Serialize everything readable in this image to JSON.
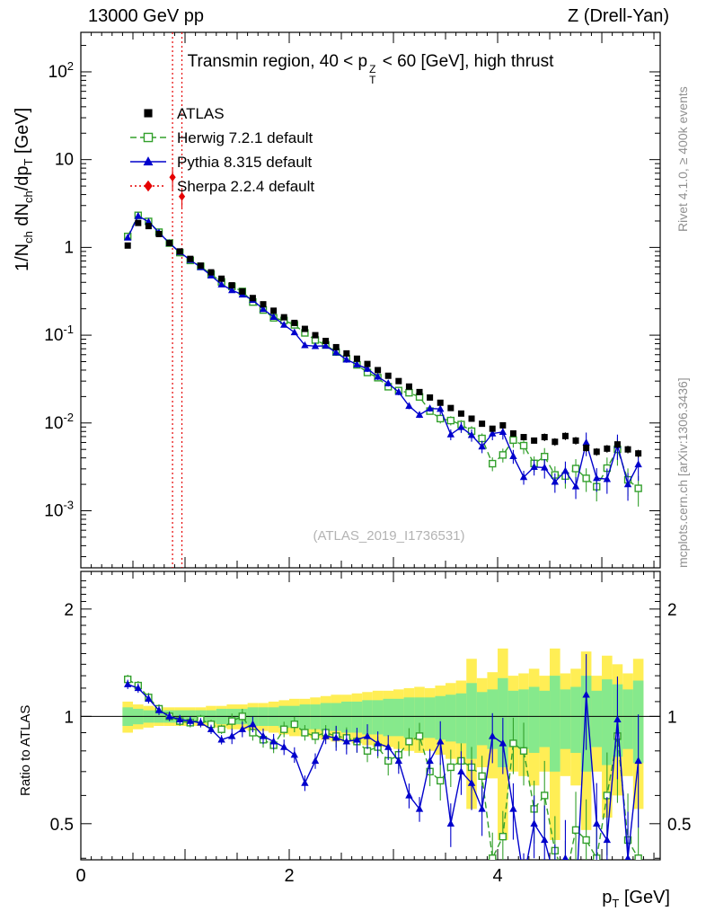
{
  "header": {
    "left": "13000 GeV pp",
    "right": "Z (Drell-Yan)"
  },
  "labels": {
    "title_pre": "Transmin region, 40 < p",
    "title_sup": "Z",
    "title_sub": "T",
    "title_post": " < 60 [GeV], high thrust",
    "ylabel_1": "1/N",
    "ylabel_1s": "ch",
    "ylabel_2": " dN",
    "ylabel_2s": "ch",
    "ylabel_3": "/dp",
    "ylabel_3s": "T",
    "ylabel_4": " [GeV]",
    "ratio_ylabel": "Ratio to ATLAS",
    "xlabel_p": "p",
    "xlabel_sub": "T",
    "xlabel_unit": " [GeV]",
    "watermark": "(ATLAS_2019_I1736531)",
    "rivet_note": "Rivet 4.1.0, ≥ 400k events",
    "mcplots_note": "mcplots.cern.ch [arXiv:1306.3436]"
  },
  "chart_data": {
    "type": "line",
    "title": "Transmin region, 40 < pT(Z) < 60 [GeV], high thrust",
    "xlabel": "pT [GeV]",
    "ylabel": "1/Nch dNch/dpT [GeV]",
    "ylabel_ratio": "Ratio to ATLAS",
    "x_range": [
      0,
      5.56
    ],
    "y_range_main_log10": [
      -3.65,
      2.45
    ],
    "y_range_ratio": [
      0.396,
      2.55
    ],
    "x_ticks_labeled": [
      0,
      2,
      4
    ],
    "y_ticks_main": [
      {
        "v": 100,
        "base": "10",
        "exp": "2"
      },
      {
        "v": 10,
        "base": "10",
        "exp": ""
      },
      {
        "v": 1,
        "base": "1",
        "exp": ""
      },
      {
        "v": 0.1,
        "base": "10",
        "exp": "-1"
      },
      {
        "v": 0.01,
        "base": "10",
        "exp": "-2"
      },
      {
        "v": 0.001,
        "base": "10",
        "exp": "-3"
      }
    ],
    "y_ticks_ratio": [
      {
        "v": 2,
        "label": "2"
      },
      {
        "v": 1,
        "label": "1"
      },
      {
        "v": 0.5,
        "label": "0.5"
      }
    ],
    "x": [
      0.45,
      0.55,
      0.65,
      0.75,
      0.85,
      0.95,
      1.05,
      1.15,
      1.25,
      1.35,
      1.45,
      1.55,
      1.65,
      1.75,
      1.85,
      1.95,
      2.05,
      2.15,
      2.25,
      2.35,
      2.45,
      2.55,
      2.65,
      2.75,
      2.85,
      2.95,
      3.05,
      3.15,
      3.25,
      3.35,
      3.45,
      3.55,
      3.65,
      3.75,
      3.85,
      3.95,
      4.05,
      4.15,
      4.25,
      4.35,
      4.45,
      4.55,
      4.65,
      4.75,
      4.85,
      4.95,
      5.05,
      5.15,
      5.25,
      5.35
    ],
    "series": {
      "atlas": {
        "name": "ATLAS",
        "color": "#000000",
        "marker": "filled-square",
        "y": [
          1.05,
          1.9,
          1.75,
          1.42,
          1.12,
          0.9,
          0.74,
          0.62,
          0.52,
          0.44,
          0.37,
          0.315,
          0.265,
          0.225,
          0.19,
          0.16,
          0.138,
          0.118,
          0.1,
          0.086,
          0.073,
          0.062,
          0.054,
          0.047,
          0.04,
          0.0345,
          0.03,
          0.026,
          0.0225,
          0.0195,
          0.017,
          0.0148,
          0.0128,
          0.0112,
          0.0098,
          0.0086,
          0.0094,
          0.0076,
          0.0069,
          0.0063,
          0.0069,
          0.0061,
          0.0071,
          0.0063,
          0.0052,
          0.0047,
          0.0051,
          0.0057,
          0.005,
          0.0045
        ],
        "yerr_rel": [
          0.04,
          0.04,
          0.04,
          0.04,
          0.04,
          0.04,
          0.04,
          0.04,
          0.04,
          0.04,
          0.04,
          0.04,
          0.04,
          0.04,
          0.04,
          0.04,
          0.04,
          0.04,
          0.04,
          0.04,
          0.05,
          0.05,
          0.05,
          0.05,
          0.05,
          0.05,
          0.05,
          0.05,
          0.05,
          0.05,
          0.07,
          0.07,
          0.07,
          0.07,
          0.07,
          0.07,
          0.07,
          0.07,
          0.07,
          0.07,
          0.1,
          0.1,
          0.1,
          0.1,
          0.1,
          0.1,
          0.1,
          0.1,
          0.1,
          0.1
        ]
      },
      "herwig": {
        "name": "Herwig 7.2.1 default",
        "color": "#33a02c",
        "marker": "open-square",
        "line": "dashed",
        "ratio_to_atlas": [
          1.27,
          1.22,
          1.13,
          1.05,
          1.0,
          0.97,
          0.96,
          0.98,
          0.95,
          0.92,
          0.97,
          1.0,
          0.9,
          0.86,
          0.83,
          0.92,
          0.95,
          0.9,
          0.88,
          0.9,
          0.88,
          0.87,
          0.85,
          0.8,
          0.82,
          0.75,
          0.78,
          0.85,
          0.88,
          0.7,
          0.66,
          0.72,
          0.75,
          0.72,
          0.68,
          0.4,
          0.46,
          0.84,
          0.8,
          0.55,
          0.6,
          0.42,
          0.35,
          0.48,
          0.45,
          0.4,
          0.6,
          0.88,
          0.45,
          0.4
        ],
        "yerr_rel": [
          0.03,
          0.03,
          0.03,
          0.03,
          0.03,
          0.03,
          0.03,
          0.03,
          0.03,
          0.03,
          0.05,
          0.05,
          0.05,
          0.05,
          0.05,
          0.05,
          0.05,
          0.05,
          0.05,
          0.05,
          0.07,
          0.07,
          0.07,
          0.07,
          0.07,
          0.09,
          0.09,
          0.09,
          0.09,
          0.09,
          0.12,
          0.12,
          0.12,
          0.14,
          0.14,
          0.18,
          0.18,
          0.18,
          0.2,
          0.2,
          0.25,
          0.25,
          0.28,
          0.28,
          0.3,
          0.32,
          0.32,
          0.35,
          0.35,
          0.38
        ]
      },
      "pythia": {
        "name": "Pythia 8.315 default",
        "color": "#0000cc",
        "marker": "filled-triangle",
        "line": "solid",
        "ratio_to_atlas": [
          1.23,
          1.2,
          1.12,
          1.04,
          1.0,
          0.98,
          0.97,
          0.96,
          0.92,
          0.86,
          0.88,
          0.92,
          0.95,
          0.88,
          0.85,
          0.82,
          0.78,
          0.65,
          0.75,
          0.88,
          0.87,
          0.85,
          0.86,
          0.88,
          0.84,
          0.82,
          0.75,
          0.6,
          0.55,
          0.75,
          0.85,
          0.5,
          0.7,
          0.65,
          0.55,
          0.88,
          0.84,
          0.55,
          0.35,
          0.5,
          0.45,
          0.35,
          0.4,
          0.3,
          1.15,
          0.5,
          0.45,
          0.98,
          0.4,
          0.75
        ],
        "yerr_rel": [
          0.03,
          0.03,
          0.03,
          0.03,
          0.03,
          0.03,
          0.03,
          0.03,
          0.03,
          0.03,
          0.05,
          0.05,
          0.05,
          0.05,
          0.05,
          0.05,
          0.05,
          0.05,
          0.05,
          0.05,
          0.08,
          0.08,
          0.08,
          0.08,
          0.08,
          0.08,
          0.08,
          0.08,
          0.08,
          0.08,
          0.14,
          0.14,
          0.14,
          0.16,
          0.16,
          0.16,
          0.18,
          0.18,
          0.18,
          0.2,
          0.25,
          0.25,
          0.28,
          0.28,
          0.3,
          0.3,
          0.32,
          0.32,
          0.35,
          0.35
        ]
      },
      "sherpa": {
        "name": "Sherpa 2.2.4 default",
        "color": "#e60000",
        "marker": "filled-diamond",
        "line": "dotted",
        "x": [
          0.88,
          0.97
        ],
        "y": [
          6.3,
          3.8
        ],
        "yerr_rel": [
          0.3,
          0.25
        ]
      }
    },
    "bands": {
      "yellow_color": "#ffee55",
      "green_color": "#86e98c",
      "half_width_yellow": [
        0.1,
        0.08,
        0.07,
        0.06,
        0.06,
        0.06,
        0.06,
        0.06,
        0.07,
        0.07,
        0.08,
        0.08,
        0.09,
        0.09,
        0.1,
        0.11,
        0.12,
        0.12,
        0.13,
        0.14,
        0.15,
        0.15,
        0.16,
        0.17,
        0.18,
        0.18,
        0.19,
        0.2,
        0.21,
        0.2,
        0.22,
        0.24,
        0.26,
        0.45,
        0.28,
        0.33,
        0.55,
        0.3,
        0.32,
        0.36,
        0.3,
        0.55,
        0.32,
        0.36,
        0.52,
        0.3,
        0.48,
        0.4,
        0.32,
        0.45
      ],
      "half_width_green": [
        0.06,
        0.05,
        0.04,
        0.04,
        0.04,
        0.04,
        0.04,
        0.04,
        0.04,
        0.05,
        0.05,
        0.05,
        0.06,
        0.06,
        0.06,
        0.07,
        0.07,
        0.08,
        0.08,
        0.09,
        0.09,
        0.1,
        0.1,
        0.11,
        0.11,
        0.12,
        0.12,
        0.13,
        0.13,
        0.13,
        0.14,
        0.15,
        0.16,
        0.24,
        0.17,
        0.19,
        0.28,
        0.18,
        0.19,
        0.21,
        0.18,
        0.3,
        0.19,
        0.21,
        0.3,
        0.18,
        0.27,
        0.23,
        0.19,
        0.26
      ]
    }
  }
}
